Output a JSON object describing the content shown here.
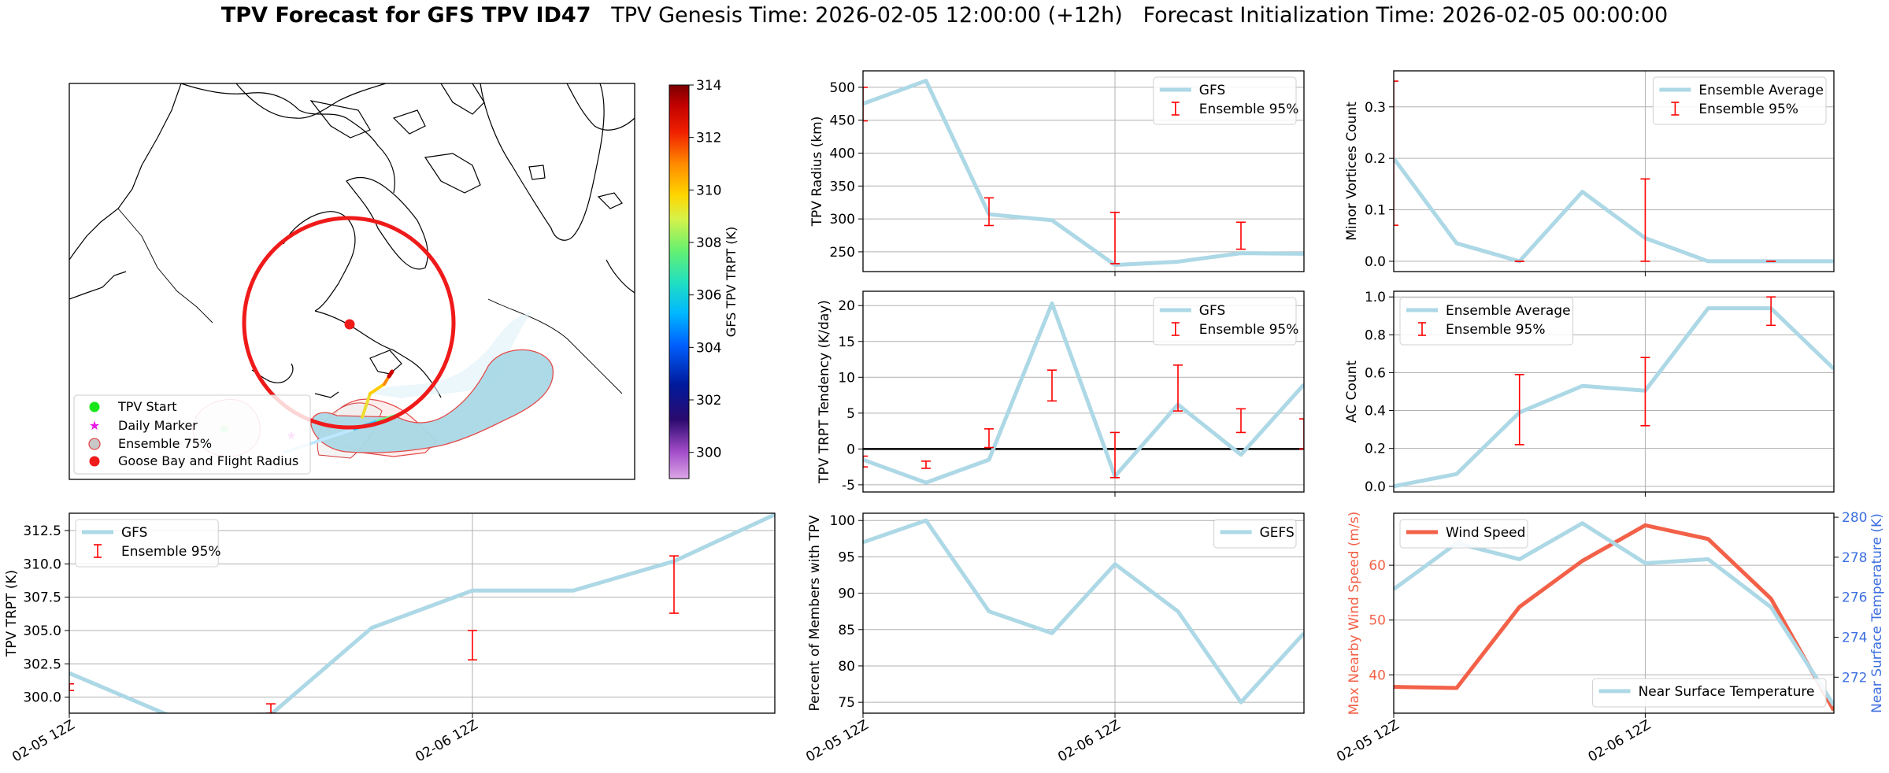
{
  "title": {
    "bold": "TPV Forecast for GFS TPV ID47",
    "genesis": "TPV Genesis Time: 2026-02-05 12:00:00 (+12h)",
    "init": "Forecast Initialization Time: 2026-02-05 00:00:00"
  },
  "colors": {
    "gfs": "#add8e6",
    "error": "#ff0000",
    "wind": "#f26148",
    "temp_axis": "#3d6fe0",
    "ring": "#ef1a1a",
    "start": "#19e619",
    "daily": "#e619e6"
  },
  "chart_data": [
    {
      "id": "map",
      "type": "map",
      "legend": [
        "TPV Start",
        "Daily Marker",
        "Ensemble 75%",
        "Goose Bay and Flight Radius"
      ],
      "colorbar": {
        "label": "GFS TPV TRPT (K)",
        "range": [
          299,
          314
        ],
        "ticks": [
          300,
          302,
          304,
          306,
          308,
          310,
          312,
          314
        ]
      }
    },
    {
      "id": "radius",
      "type": "line",
      "ylabel": "TPV Radius (km)",
      "ylim": [
        220,
        525
      ],
      "yticks": [
        250,
        300,
        350,
        400,
        450,
        500
      ],
      "xlim": [
        0,
        14
      ],
      "xticks": [
        {
          "x": 8,
          "label": "02-06 12Z"
        }
      ],
      "legend": [
        "GFS",
        "Ensemble 95%"
      ],
      "legend_loc": "top-right",
      "series": [
        {
          "name": "GFS",
          "x": [
            0,
            2,
            4,
            6,
            8,
            10,
            12,
            14
          ],
          "y": [
            475,
            510,
            307,
            298,
            230,
            235,
            248,
            247
          ]
        }
      ],
      "errorbars": [
        {
          "x": 0,
          "lo": 449,
          "hi": 500
        },
        {
          "x": 4,
          "lo": 290,
          "hi": 332
        },
        {
          "x": 8,
          "lo": 232,
          "hi": 310
        },
        {
          "x": 12,
          "lo": 254,
          "hi": 295
        }
      ]
    },
    {
      "id": "minor",
      "type": "line",
      "ylabel": "Minor Vortices Count",
      "ylim": [
        -0.02,
        0.37
      ],
      "yticks": [
        0.0,
        0.1,
        0.2,
        0.3
      ],
      "xlim": [
        0,
        14
      ],
      "xticks": [
        {
          "x": 8,
          "label": "02-06 12Z"
        }
      ],
      "legend": [
        "Ensemble Average",
        "Ensemble 95%"
      ],
      "legend_loc": "top-right",
      "series": [
        {
          "name": "Ensemble Average",
          "x": [
            0,
            2,
            4,
            6,
            8,
            10,
            12,
            14
          ],
          "y": [
            0.2,
            0.035,
            0.0,
            0.135,
            0.045,
            0.0,
            0.0,
            0.0
          ]
        }
      ],
      "errorbars": [
        {
          "x": 0,
          "lo": 0.07,
          "hi": 0.35
        },
        {
          "x": 4,
          "lo": 0.0,
          "hi": 0.0
        },
        {
          "x": 8,
          "lo": 0.0,
          "hi": 0.16
        },
        {
          "x": 12,
          "lo": 0.0,
          "hi": 0.0
        }
      ]
    },
    {
      "id": "tendency",
      "type": "line",
      "ylabel": "TPV TRPT Tendency (K/day)",
      "ylim": [
        -6,
        22
      ],
      "yticks": [
        -5,
        0,
        5,
        10,
        15,
        20
      ],
      "xlim": [
        0,
        14
      ],
      "xticks": [
        {
          "x": 8,
          "label": "02-06 12Z"
        }
      ],
      "hline": 0,
      "legend": [
        "GFS",
        "Ensemble 95%"
      ],
      "legend_loc": "top-right",
      "series": [
        {
          "name": "GFS",
          "x": [
            0,
            2,
            4,
            6,
            8,
            10,
            12,
            14
          ],
          "y": [
            -1.5,
            -4.7,
            -1.5,
            20.3,
            -3.8,
            6.2,
            -0.8,
            9.0
          ]
        }
      ],
      "errorbars": [
        {
          "x": 0,
          "lo": -2.5,
          "hi": -1.0
        },
        {
          "x": 2,
          "lo": -2.7,
          "hi": -1.7
        },
        {
          "x": 4,
          "lo": 0.2,
          "hi": 2.8
        },
        {
          "x": 6,
          "lo": 6.7,
          "hi": 11.0
        },
        {
          "x": 8,
          "lo": -4.0,
          "hi": 2.3
        },
        {
          "x": 10,
          "lo": 5.3,
          "hi": 11.7
        },
        {
          "x": 12,
          "lo": 2.3,
          "hi": 5.6
        },
        {
          "x": 14,
          "lo": 0,
          "hi": 4.2
        }
      ]
    },
    {
      "id": "ac",
      "type": "line",
      "ylabel": "AC Count",
      "ylim": [
        -0.03,
        1.03
      ],
      "yticks": [
        0.0,
        0.2,
        0.4,
        0.6,
        0.8,
        1.0
      ],
      "xlim": [
        0,
        14
      ],
      "xticks": [
        {
          "x": 8,
          "label": "02-06 12Z"
        }
      ],
      "legend": [
        "Ensemble Average",
        "Ensemble 95%"
      ],
      "legend_loc": "top-left",
      "series": [
        {
          "name": "Ensemble Average",
          "x": [
            0,
            2,
            4,
            6,
            8,
            10,
            12,
            14
          ],
          "y": [
            0.0,
            0.065,
            0.39,
            0.53,
            0.505,
            0.94,
            0.94,
            0.62
          ]
        }
      ],
      "errorbars": [
        {
          "x": 4,
          "lo": 0.22,
          "hi": 0.59
        },
        {
          "x": 8,
          "lo": 0.32,
          "hi": 0.68
        },
        {
          "x": 12,
          "lo": 0.85,
          "hi": 1.0
        }
      ]
    },
    {
      "id": "trpt",
      "type": "line",
      "ylabel": "TPV TRPT (K)",
      "ylim": [
        298.8,
        313.8
      ],
      "yticks": [
        300.0,
        302.5,
        305.0,
        307.5,
        310.0,
        312.5
      ],
      "xlim": [
        0,
        14
      ],
      "xticks": [
        {
          "x": 0,
          "label": "02-05 12Z"
        },
        {
          "x": 8,
          "label": "02-06 12Z"
        }
      ],
      "legend": [
        "GFS",
        "Ensemble 95%"
      ],
      "legend_loc": "top-left",
      "series": [
        {
          "name": "GFS",
          "x": [
            0,
            2,
            4,
            6,
            8,
            10,
            12,
            14
          ],
          "y": [
            301.8,
            298.6,
            298.7,
            305.2,
            308.0,
            308.0,
            310.2,
            313.7
          ]
        }
      ],
      "errorbars": [
        {
          "x": 0,
          "lo": 300.5,
          "hi": 301.0
        },
        {
          "x": 4,
          "lo": 298.8,
          "hi": 299.5
        },
        {
          "x": 8,
          "lo": 302.8,
          "hi": 305.0
        },
        {
          "x": 12,
          "lo": 306.3,
          "hi": 310.6
        }
      ]
    },
    {
      "id": "percent",
      "type": "line",
      "ylabel": "Percent of Members with TPV",
      "ylim": [
        73.5,
        101
      ],
      "yticks": [
        75,
        80,
        85,
        90,
        95,
        100
      ],
      "xlim": [
        0,
        14
      ],
      "xticks": [
        {
          "x": 0,
          "label": "02-05 12Z"
        },
        {
          "x": 8,
          "label": "02-06 12Z"
        }
      ],
      "legend": [
        "GEFS"
      ],
      "legend_loc": "top-right",
      "series": [
        {
          "name": "GEFS",
          "x": [
            0,
            2,
            4,
            6,
            8,
            10,
            12,
            14
          ],
          "y": [
            97,
            100,
            87.5,
            84.5,
            94,
            87.5,
            75,
            84.5
          ]
        }
      ]
    },
    {
      "id": "wind",
      "type": "line",
      "ylabel": "Max Nearby Wind Speed (m/s)",
      "ylim": [
        33,
        69.5
      ],
      "yticks": [
        40,
        50,
        60
      ],
      "ylabel_right": "Near Surface Temperature (K)",
      "ylim_right": [
        270.2,
        280.2
      ],
      "yticks_right": [
        272,
        274,
        276,
        278,
        280
      ],
      "xlim": [
        0,
        14
      ],
      "xticks": [
        {
          "x": 0,
          "label": "02-05 12Z"
        },
        {
          "x": 8,
          "label": "02-06 12Z"
        }
      ],
      "legend": [
        "Wind Speed"
      ],
      "legend_loc": "top-left",
      "legend_right": [
        "Near Surface Temperature"
      ],
      "legend_right_loc": "bottom-right",
      "series": [
        {
          "name": "Wind Speed",
          "axis": "left",
          "x": [
            0,
            2,
            4,
            6,
            8,
            10,
            12,
            14
          ],
          "y": [
            37.8,
            37.6,
            52.4,
            60.8,
            67.3,
            64.8,
            53.9,
            33.5
          ]
        },
        {
          "name": "Near Surface Temperature",
          "axis": "right",
          "x": [
            0,
            2,
            4,
            6,
            8,
            10,
            12,
            14
          ],
          "y": [
            276.4,
            278.7,
            277.9,
            279.7,
            277.7,
            277.9,
            275.5,
            270.6
          ]
        }
      ]
    }
  ]
}
